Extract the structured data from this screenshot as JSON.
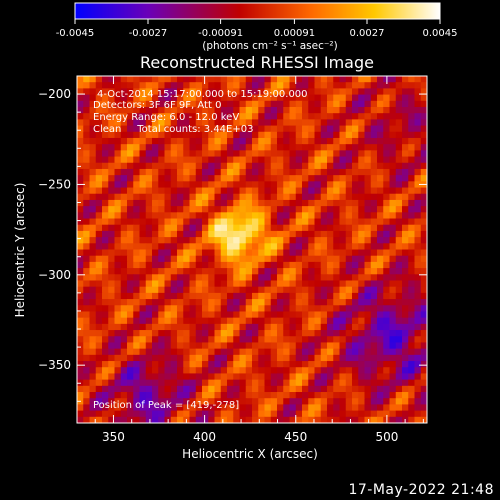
{
  "chart_data": {
    "type": "heatmap",
    "title": "Reconstructed RHESSI Image",
    "xlabel": "Heliocentric X (arcsec)",
    "ylabel": "Heliocentric Y (arcsec)",
    "xlim": [
      330,
      522
    ],
    "ylim": [
      -382,
      -190
    ],
    "xticks": [
      350,
      400,
      450,
      500
    ],
    "yticks": [
      -200,
      -250,
      -300,
      -350
    ],
    "colorbar": {
      "min": -0.0045,
      "max": 0.0045,
      "ticks": [
        "-0.0045",
        "-0.0027",
        "-0.00091",
        "0.00091",
        "0.0027",
        "0.0045"
      ],
      "unit_label": "(photons cm⁻² s⁻¹ asec⁻²)",
      "colormap": [
        "#0000ff",
        "#6a00b8",
        "#c00000",
        "#ff6a00",
        "#ffc800",
        "#ffffff"
      ]
    },
    "peak": [
      419,
      -278
    ],
    "annotations": [
      "4-Oct-2014 15:17:00.000 to 15:19:00.000",
      "Detectors: 3F 6F 9F, Att 0",
      "Energy Range: 6.0 - 12.0 keV",
      "Clean     Total counts: 3.44E+03",
      "Position of Peak = [419,-278]"
    ]
  },
  "timestamp": "17-May-2022 21:48"
}
